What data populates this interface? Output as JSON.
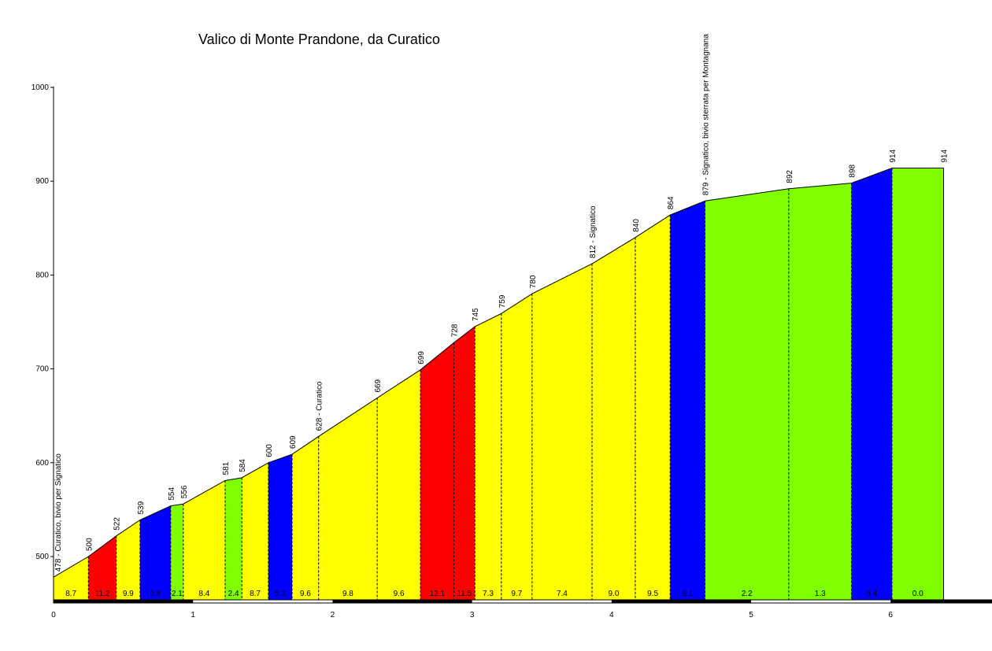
{
  "chart_data": {
    "type": "area",
    "title": "Valico di Monte Prandone, da Curatico",
    "xlim": [
      0,
      6.4
    ],
    "ylim": [
      450,
      1000
    ],
    "y_ticks": [
      500,
      600,
      700,
      800,
      900,
      1000
    ],
    "x_ticks": [
      0,
      1,
      2,
      3,
      4,
      5,
      6
    ],
    "points": [
      {
        "x": 0.0,
        "alt": 478,
        "label": "478 - Curatico, bivio per Signatico"
      },
      {
        "x": 0.25,
        "alt": 500,
        "label": "500"
      },
      {
        "x": 0.45,
        "alt": 522,
        "label": "522"
      },
      {
        "x": 0.62,
        "alt": 539,
        "label": "539"
      },
      {
        "x": 0.84,
        "alt": 554,
        "label": "554"
      },
      {
        "x": 0.93,
        "alt": 556,
        "label": "556"
      },
      {
        "x": 1.23,
        "alt": 581,
        "label": "581"
      },
      {
        "x": 1.35,
        "alt": 584,
        "label": "584"
      },
      {
        "x": 1.54,
        "alt": 600,
        "label": "600"
      },
      {
        "x": 1.71,
        "alt": 609,
        "label": "609"
      },
      {
        "x": 1.9,
        "alt": 628,
        "label": "628 - Curatico"
      },
      {
        "x": 2.32,
        "alt": 669,
        "label": "669"
      },
      {
        "x": 2.63,
        "alt": 699,
        "label": "699"
      },
      {
        "x": 2.87,
        "alt": 728,
        "label": "728"
      },
      {
        "x": 3.02,
        "alt": 745,
        "label": "745"
      },
      {
        "x": 3.21,
        "alt": 759,
        "label": "759"
      },
      {
        "x": 3.43,
        "alt": 780,
        "label": "780"
      },
      {
        "x": 3.86,
        "alt": 812,
        "label": "812 - Signatico"
      },
      {
        "x": 4.17,
        "alt": 840,
        "label": "840"
      },
      {
        "x": 4.42,
        "alt": 864,
        "label": "864"
      },
      {
        "x": 4.67,
        "alt": 879,
        "label": "879 - Signatico, bivio sterrata per Montagnana"
      },
      {
        "x": 5.27,
        "alt": 892,
        "label": "892"
      },
      {
        "x": 5.72,
        "alt": 898,
        "label": "898"
      },
      {
        "x": 6.01,
        "alt": 914,
        "label": "914"
      },
      {
        "x": 6.38,
        "alt": 914,
        "label": "914"
      }
    ],
    "segments": [
      {
        "gradient": "8.7",
        "color": "#ffff00"
      },
      {
        "gradient": "11.2",
        "color": "#ff0000"
      },
      {
        "gradient": "9.9",
        "color": "#ffff00"
      },
      {
        "gradient": "6.8",
        "color": "#0000ff"
      },
      {
        "gradient": "2.1",
        "color": "#80ff00"
      },
      {
        "gradient": "8.4",
        "color": "#ffff00"
      },
      {
        "gradient": "2.4",
        "color": "#80ff00"
      },
      {
        "gradient": "8.7",
        "color": "#ffff00"
      },
      {
        "gradient": "5.3",
        "color": "#0000ff"
      },
      {
        "gradient": "9.6",
        "color": "#ffff00"
      },
      {
        "gradient": "9.8",
        "color": "#ffff00"
      },
      {
        "gradient": "9.6",
        "color": "#ffff00"
      },
      {
        "gradient": "12.1",
        "color": "#ff0000"
      },
      {
        "gradient": "11.5",
        "color": "#ff0000"
      },
      {
        "gradient": "7.3",
        "color": "#ffff00"
      },
      {
        "gradient": "9.7",
        "color": "#ffff00"
      },
      {
        "gradient": "7.4",
        "color": "#ffff00"
      },
      {
        "gradient": "9.0",
        "color": "#ffff00"
      },
      {
        "gradient": "9.5",
        "color": "#ffff00"
      },
      {
        "gradient": "6.1",
        "color": "#0000ff"
      },
      {
        "gradient": "2.2",
        "color": "#80ff00"
      },
      {
        "gradient": "1.3",
        "color": "#80ff00"
      },
      {
        "gradient": "5.4",
        "color": "#0000ff"
      },
      {
        "gradient": "0.0",
        "color": "#80ff00"
      }
    ],
    "colors": {
      "yellow": "#ffff00",
      "red": "#ff0000",
      "blue": "#0000ff",
      "green": "#80ff00"
    }
  }
}
